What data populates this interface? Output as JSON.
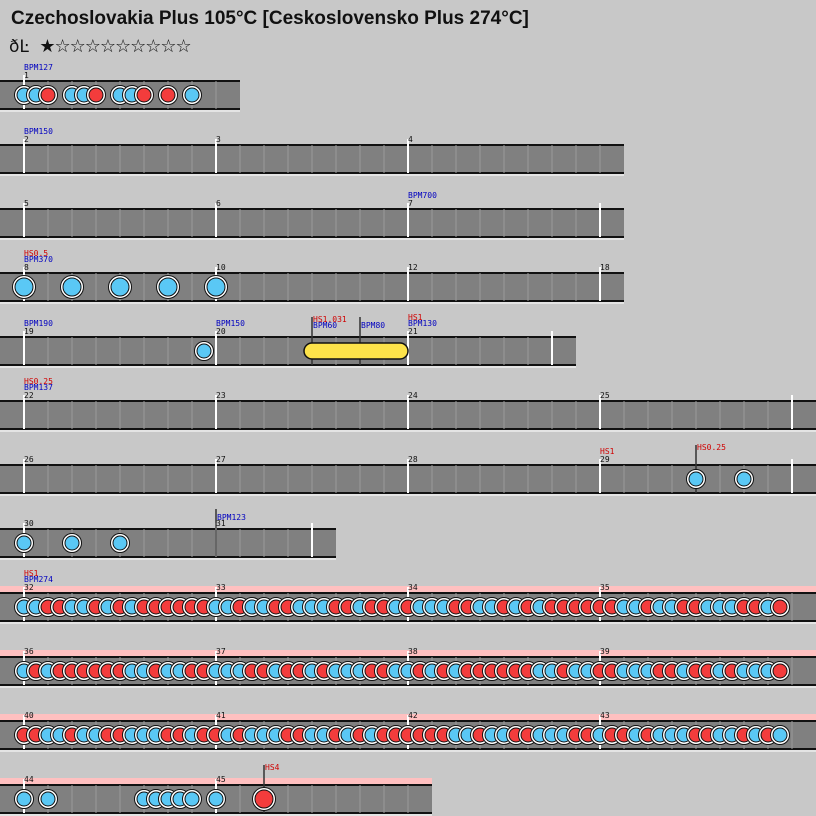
{
  "song": {
    "title": "Czechoslovakia Plus 105°C [Ceskoslovensko Plus 274°C]",
    "course_icon": "ðĿ",
    "course_icon_name": "oni-course-icon",
    "stars": "★☆☆☆☆☆☆☆☆☆",
    "star_level": 1,
    "star_max": 10
  },
  "colors": {
    "background": "#c8c8c8",
    "lane": "#808080",
    "lane_gogo": "#ffc0c0",
    "don": "#f33c3c",
    "ka": "#5ac8f5",
    "drumroll": "#fde34a",
    "bpm_text": "#0000c0",
    "hs_text": "#d00000"
  },
  "chart_data": {
    "type": "table",
    "rows": [
      {
        "measures": [
          {
            "num": "1",
            "bpm": "BPM127",
            "hs": "",
            "notes": [
              "k",
              "k",
              "d",
              "",
              "k",
              "k",
              "d",
              "",
              "k",
              "k",
              "d",
              "",
              "d",
              "",
              "k"
            ]
          }
        ]
      },
      {
        "measures": [
          {
            "num": "2",
            "bpm": "BPM150",
            "hs": "",
            "notes": []
          },
          {
            "num": "3",
            "bpm": "",
            "hs": "",
            "notes": []
          },
          {
            "num": "4",
            "bpm": "",
            "hs": "",
            "notes": []
          }
        ]
      },
      {
        "measures": [
          {
            "num": "5",
            "bpm": "",
            "hs": "",
            "notes": []
          },
          {
            "num": "6",
            "bpm": "",
            "hs": "",
            "notes": []
          },
          {
            "num": "7",
            "bpm": "BPM700",
            "hs": "",
            "notes": []
          }
        ]
      },
      {
        "measures": [
          {
            "num": "8",
            "bpm": "BPM370",
            "hs": "HS0.5",
            "notes": [
              "K",
              "",
              "",
              "",
              "",
              "",
              "",
              "",
              "K",
              "",
              "",
              "",
              "",
              "",
              "",
              ""
            ]
          },
          {
            "num": "10",
            "bpm": "",
            "hs": "",
            "notes": [
              "K",
              "",
              "",
              "",
              "",
              "",
              "",
              "",
              "K",
              "",
              "",
              "",
              "",
              "",
              "",
              ""
            ]
          },
          {
            "num": "12",
            "bpm": "",
            "hs": "",
            "notes": [
              "K",
              "",
              "",
              "",
              "",
              "",
              "",
              "",
              "K",
              "",
              "",
              "",
              "",
              "",
              "",
              ""
            ]
          },
          {
            "num": "18",
            "bpm": "",
            "hs": "",
            "notes": []
          }
        ]
      },
      {
        "measures": [
          {
            "num": "19",
            "bpm": "BPM190",
            "hs": "",
            "notes": []
          },
          {
            "num": "20",
            "bpm": "BPM150",
            "hs": "",
            "notes": []
          },
          {
            "num": "21",
            "bpm": "BPM130",
            "hs": "HS1",
            "notes": []
          }
        ],
        "events": [
          {
            "bpm": "BPM60",
            "hs": "HS1.031"
          },
          {
            "bpm": "BPM80",
            "hs": ""
          }
        ],
        "drumroll": {
          "from": "20",
          "to": "21"
        }
      },
      {
        "measures": [
          {
            "num": "22",
            "bpm": "BPM137",
            "hs": "HS0.25",
            "notes": []
          },
          {
            "num": "23",
            "bpm": "",
            "hs": "",
            "notes": []
          },
          {
            "num": "24",
            "bpm": "",
            "hs": "",
            "notes": []
          },
          {
            "num": "25",
            "bpm": "",
            "hs": "",
            "notes": []
          }
        ]
      },
      {
        "measures": [
          {
            "num": "26",
            "bpm": "",
            "hs": "",
            "notes": []
          },
          {
            "num": "27",
            "bpm": "",
            "hs": "",
            "notes": []
          },
          {
            "num": "28",
            "bpm": "",
            "hs": "",
            "notes": []
          },
          {
            "num": "29",
            "bpm": "",
            "hs": "HS1",
            "notes": []
          }
        ],
        "events": [
          {
            "bpm": "",
            "hs": "HS0.25"
          }
        ]
      },
      {
        "measures": [
          {
            "num": "30",
            "bpm": "",
            "hs": "",
            "notes": []
          },
          {
            "num": "31",
            "bpm": "",
            "hs": "",
            "notes": []
          }
        ],
        "events": [
          {
            "bpm": "BPM123",
            "hs": ""
          }
        ]
      },
      {
        "gogo": true,
        "measures": [
          {
            "num": "32",
            "bpm": "BPM274",
            "hs": "HS1"
          },
          {
            "num": "33"
          },
          {
            "num": "34"
          },
          {
            "num": "35"
          }
        ]
      },
      {
        "gogo": true,
        "measures": [
          {
            "num": "36"
          },
          {
            "num": "37"
          },
          {
            "num": "38"
          },
          {
            "num": "39"
          }
        ]
      },
      {
        "gogo": true,
        "measures": [
          {
            "num": "40"
          },
          {
            "num": "41"
          },
          {
            "num": "42"
          },
          {
            "num": "43"
          }
        ]
      },
      {
        "gogo": true,
        "measures": [
          {
            "num": "44"
          },
          {
            "num": "45"
          }
        ],
        "events": [
          {
            "bpm": "",
            "hs": "HS4"
          }
        ]
      }
    ]
  }
}
